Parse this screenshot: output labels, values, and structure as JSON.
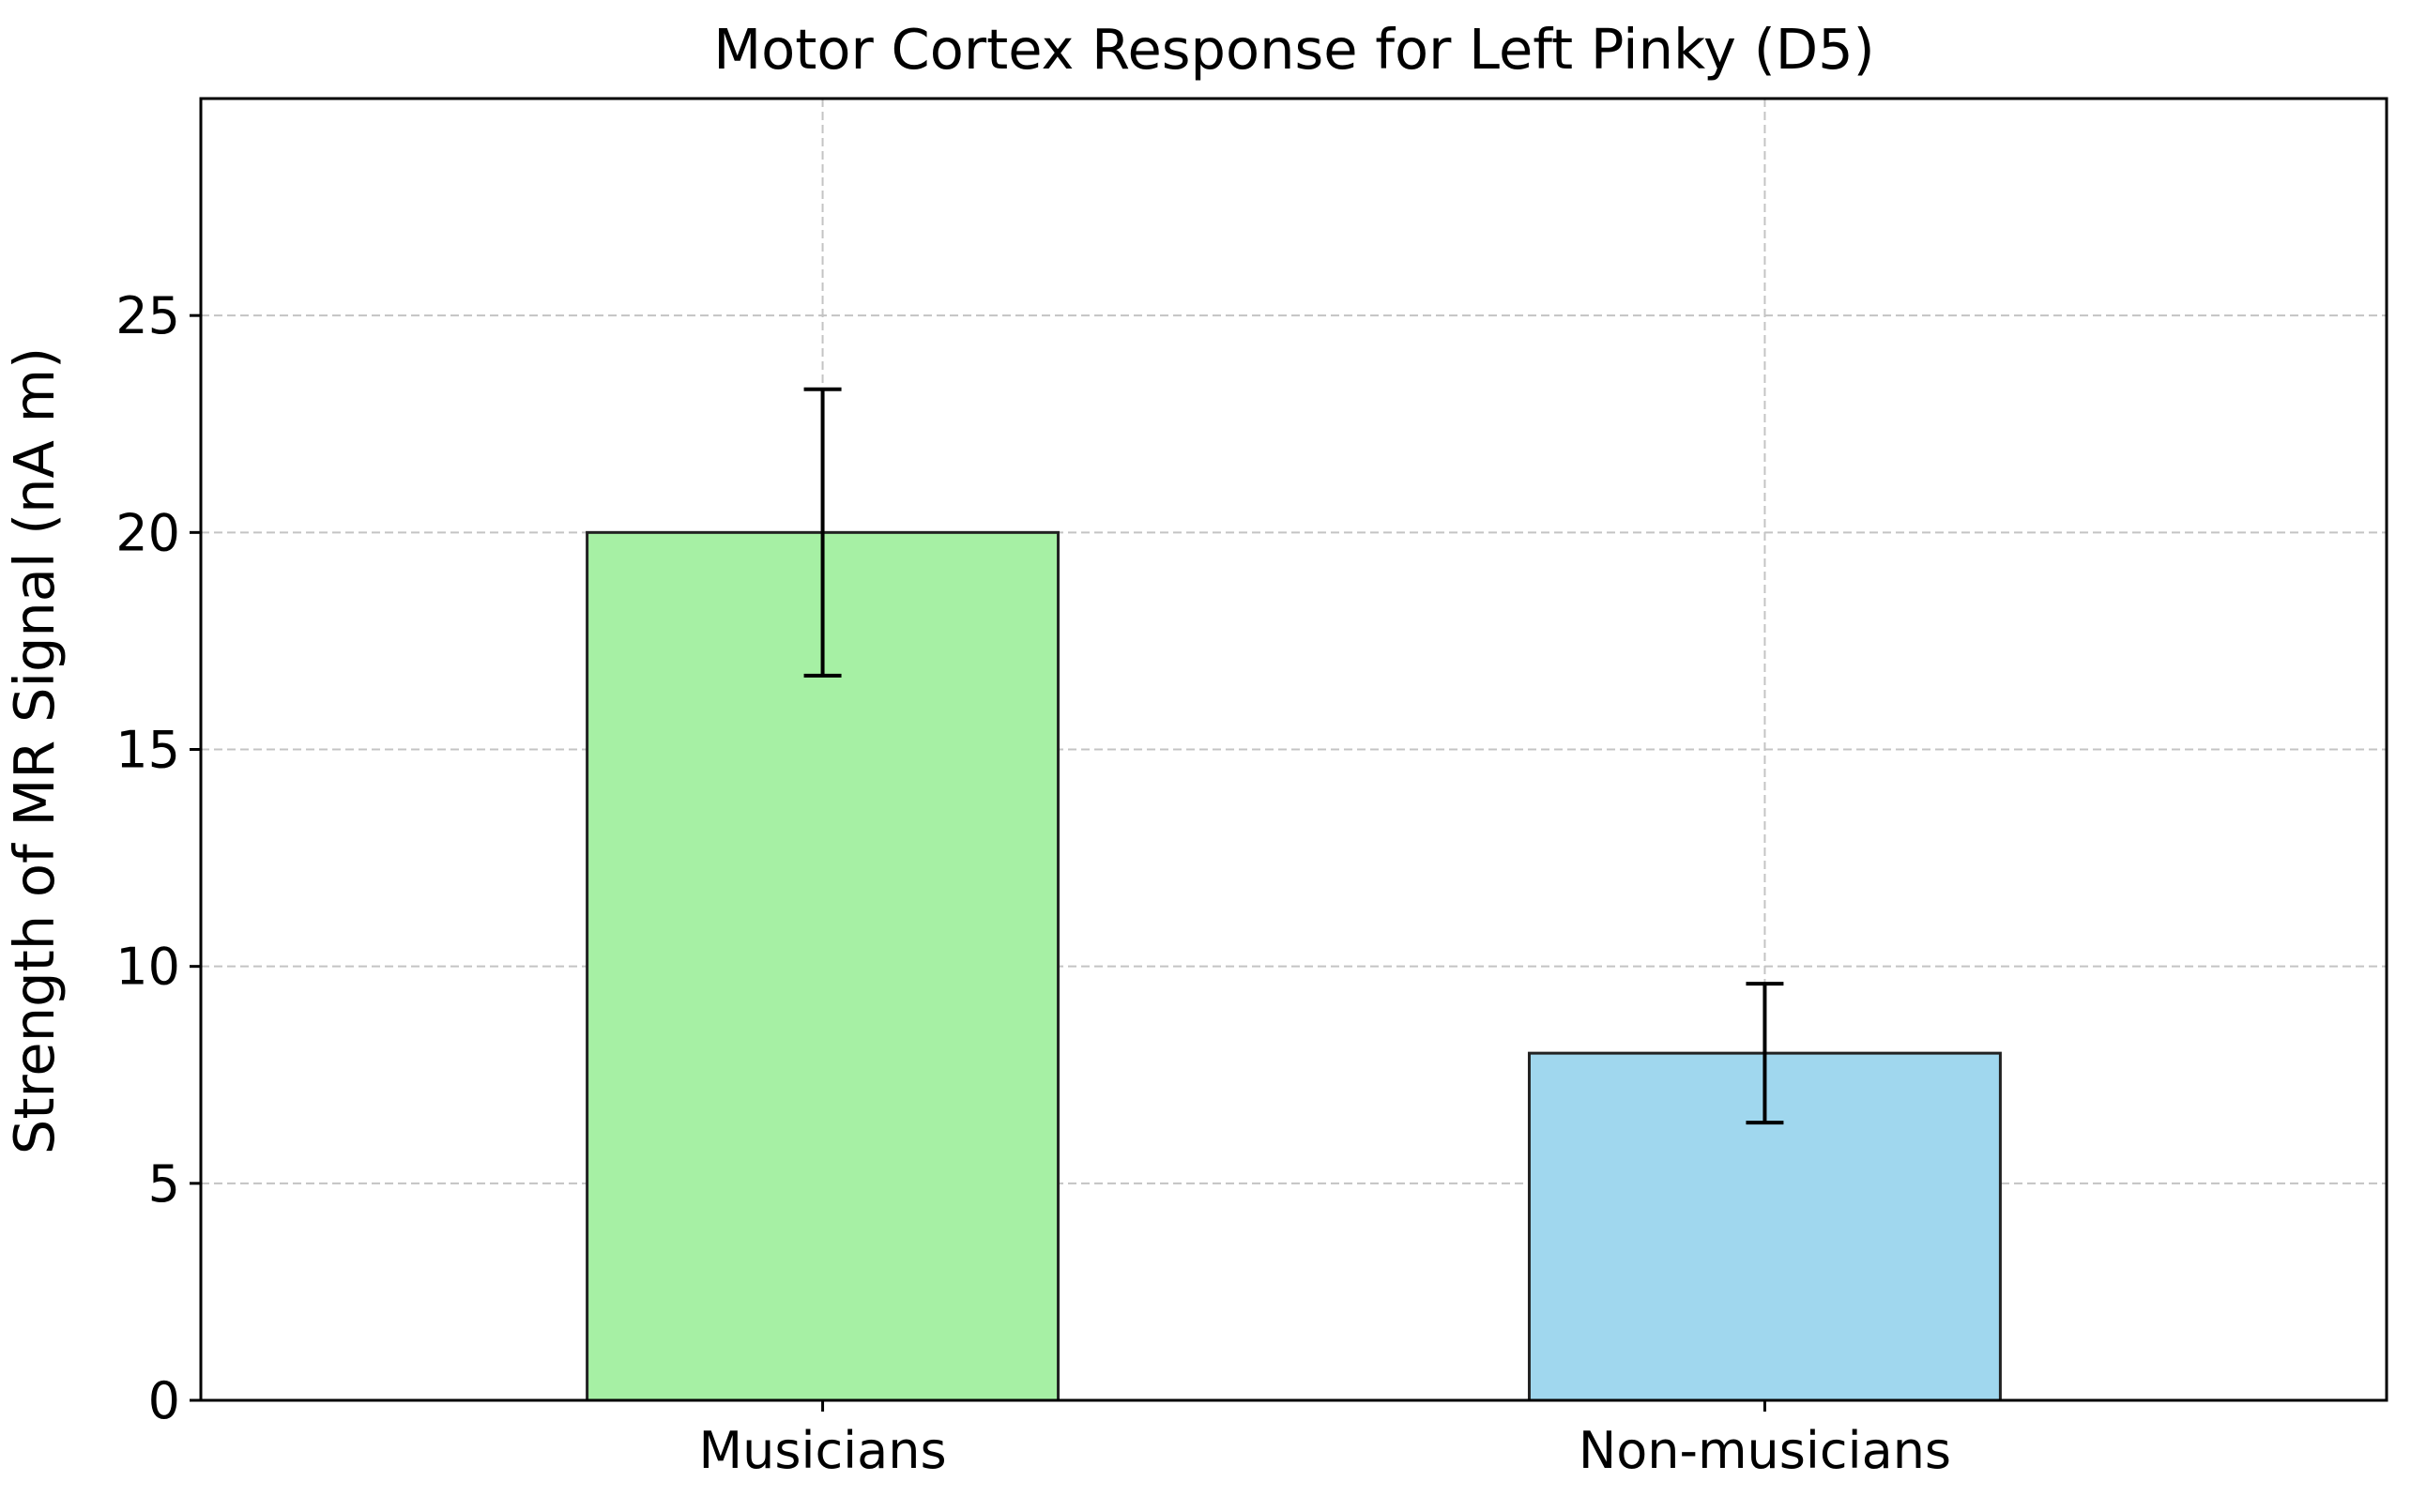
{
  "chart_data": {
    "type": "bar",
    "title": "Motor Cortex Response for Left Pinky (D5)",
    "xlabel": "",
    "ylabel": "Strength of MR Signal (nA m)",
    "categories": [
      "Musicians",
      "Non-musicians"
    ],
    "values": [
      20,
      8
    ],
    "errors": [
      3.3,
      1.6
    ],
    "colors": [
      "#a6f0a4",
      "#a0d7ee"
    ],
    "ylim": [
      0,
      30
    ],
    "yticks": [
      0,
      5,
      10,
      15,
      20,
      25
    ],
    "ytick_labels": [
      "0",
      "5",
      "10",
      "15",
      "20",
      "25"
    ],
    "grid": true,
    "legend": "none"
  }
}
